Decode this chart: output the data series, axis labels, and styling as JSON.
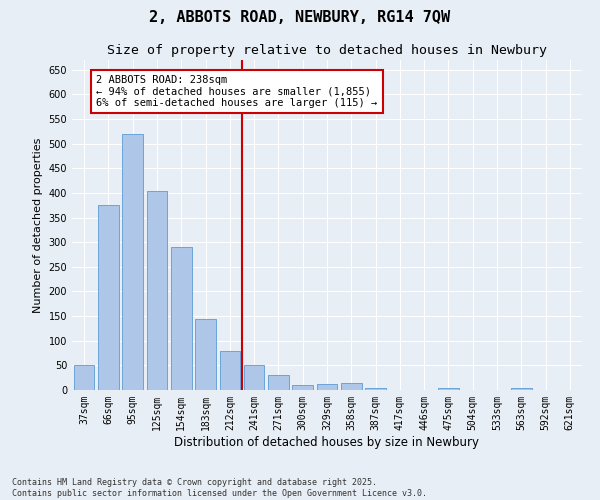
{
  "title": "2, ABBOTS ROAD, NEWBURY, RG14 7QW",
  "subtitle": "Size of property relative to detached houses in Newbury",
  "xlabel": "Distribution of detached houses by size in Newbury",
  "ylabel": "Number of detached properties",
  "categories": [
    "37sqm",
    "66sqm",
    "95sqm",
    "125sqm",
    "154sqm",
    "183sqm",
    "212sqm",
    "241sqm",
    "271sqm",
    "300sqm",
    "329sqm",
    "358sqm",
    "387sqm",
    "417sqm",
    "446sqm",
    "475sqm",
    "504sqm",
    "533sqm",
    "563sqm",
    "592sqm",
    "621sqm"
  ],
  "values": [
    50,
    375,
    520,
    405,
    290,
    145,
    80,
    50,
    30,
    10,
    12,
    15,
    5,
    0,
    0,
    5,
    0,
    0,
    5,
    0,
    0
  ],
  "bar_color": "#aec6e8",
  "bar_edge_color": "#5b9bd5",
  "vline_index": 7,
  "vline_color": "#cc0000",
  "annotation_line1": "2 ABBOTS ROAD: 238sqm",
  "annotation_line2": "← 94% of detached houses are smaller (1,855)",
  "annotation_line3": "6% of semi-detached houses are larger (115) →",
  "annotation_box_color": "#ffffff",
  "annotation_border_color": "#cc0000",
  "ylim": [
    0,
    670
  ],
  "yticks": [
    0,
    50,
    100,
    150,
    200,
    250,
    300,
    350,
    400,
    450,
    500,
    550,
    600,
    650
  ],
  "background_color": "#e8eef5",
  "grid_color": "#ffffff",
  "footnote": "Contains HM Land Registry data © Crown copyright and database right 2025.\nContains public sector information licensed under the Open Government Licence v3.0.",
  "title_fontsize": 11,
  "subtitle_fontsize": 9.5,
  "xlabel_fontsize": 8.5,
  "ylabel_fontsize": 8,
  "tick_fontsize": 7,
  "annotation_fontsize": 7.5,
  "footnote_fontsize": 6
}
